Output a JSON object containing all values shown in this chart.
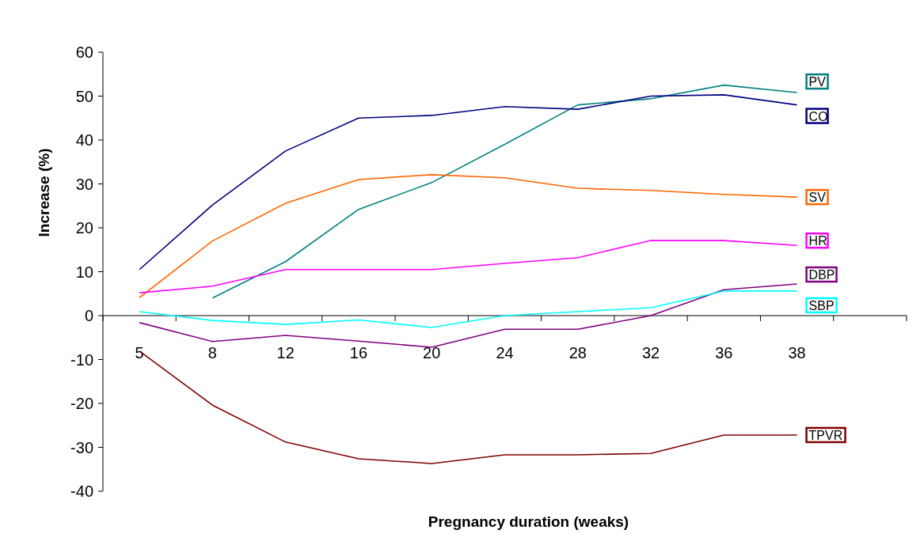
{
  "chart_data": {
    "type": "line",
    "xlabel": "Pregnancy duration (weaks)",
    "ylabel": "Increase (%)",
    "categories": [
      "5",
      "8",
      "12",
      "16",
      "20",
      "24",
      "28",
      "32",
      "36",
      "38"
    ],
    "ylim": [
      -40,
      60
    ],
    "yticks": [
      -40,
      -30,
      -20,
      -10,
      0,
      10,
      20,
      30,
      40,
      50,
      60
    ],
    "grid": false,
    "legend": "right",
    "marker": "none",
    "line_style": "solid",
    "series": [
      {
        "name": "PV",
        "color": "#008080",
        "values": [
          null,
          4,
          12.3,
          24.2,
          30.3,
          39,
          48,
          49.4,
          52.5,
          50.8
        ]
      },
      {
        "name": "CO",
        "color": "#000080",
        "values": [
          10.5,
          25.2,
          37.5,
          45,
          45.6,
          47.6,
          47,
          50,
          50.3,
          48
        ]
      },
      {
        "name": "SV",
        "color": "#ff6600",
        "values": [
          4.1,
          17,
          25.6,
          31,
          32.1,
          31.4,
          29,
          28.5,
          27.6,
          27
        ]
      },
      {
        "name": "HR",
        "color": "#ff00ff",
        "values": [
          5.2,
          6.7,
          10.5,
          10.5,
          10.5,
          11.9,
          13.2,
          17.1,
          17.1,
          16
        ]
      },
      {
        "name": "DBP",
        "color": "#800080",
        "values": [
          -1.6,
          -5.9,
          -4.5,
          -5.8,
          -7.2,
          -3.1,
          -3.1,
          0,
          5.9,
          7.2
        ]
      },
      {
        "name": "SBP",
        "color": "#00ffff",
        "values": [
          0.9,
          -1.1,
          -2,
          -1,
          -2.7,
          0,
          0.9,
          1.8,
          5.6,
          5.6
        ]
      },
      {
        "name": "TPVR",
        "color": "#800000",
        "values": [
          -8.1,
          -20.4,
          -28.8,
          -32.6,
          -33.7,
          -31.7,
          -31.7,
          -31.4,
          -27.2,
          -27.2
        ]
      }
    ]
  }
}
